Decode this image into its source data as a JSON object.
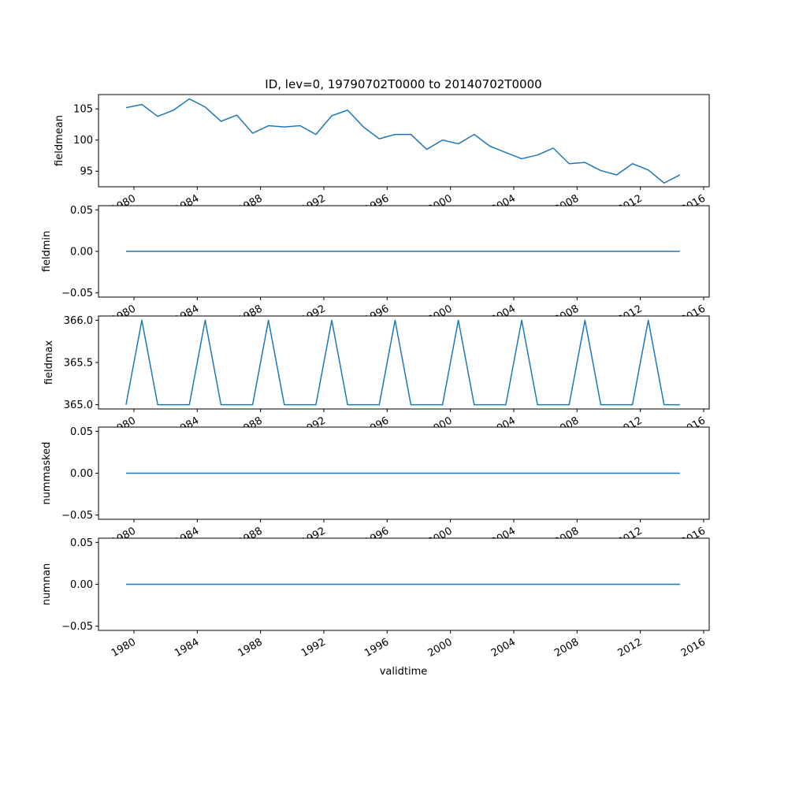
{
  "chart_data": {
    "type": "line",
    "title": "ID, lev=0, 19790702T0000 to 20140702T0000",
    "xlabel": "validtime",
    "x": [
      1979,
      1980,
      1981,
      1982,
      1983,
      1984,
      1985,
      1986,
      1987,
      1988,
      1989,
      1990,
      1991,
      1992,
      1993,
      1994,
      1995,
      1996,
      1997,
      1998,
      1999,
      2000,
      2001,
      2002,
      2003,
      2004,
      2005,
      2006,
      2007,
      2008,
      2009,
      2010,
      2011,
      2012,
      2013,
      2014
    ],
    "x_ticks": [
      "1980",
      "1984",
      "1988",
      "1992",
      "1996",
      "2000",
      "2004",
      "2008",
      "2012",
      "2016"
    ],
    "color": "#1f77b4",
    "panels": [
      {
        "ylabel": "fieldmean",
        "ylim": [
          92.5,
          107.3
        ],
        "yticks": [
          95,
          100,
          105
        ],
        "ytick_labels": [
          "95",
          "100",
          "105"
        ],
        "values": [
          105.2,
          105.7,
          103.8,
          104.8,
          106.6,
          105.3,
          103.0,
          104.0,
          101.1,
          102.3,
          102.1,
          102.3,
          100.9,
          103.9,
          104.8,
          102.1,
          100.2,
          100.9,
          100.9,
          98.5,
          100.0,
          99.4,
          100.9,
          99.0,
          98.0,
          97.0,
          97.6,
          98.7,
          96.2,
          96.4,
          95.1,
          94.4,
          96.2,
          95.2,
          93.1,
          94.4
        ]
      },
      {
        "ylabel": "fieldmin",
        "ylim": [
          -0.055,
          0.055
        ],
        "yticks": [
          -0.05,
          0,
          0.05
        ],
        "ytick_labels": [
          "−0.05",
          "0.00",
          "0.05"
        ],
        "values": [
          0,
          0,
          0,
          0,
          0,
          0,
          0,
          0,
          0,
          0,
          0,
          0,
          0,
          0,
          0,
          0,
          0,
          0,
          0,
          0,
          0,
          0,
          0,
          0,
          0,
          0,
          0,
          0,
          0,
          0,
          0,
          0,
          0,
          0,
          0,
          0
        ]
      },
      {
        "ylabel": "fieldmax",
        "ylim": [
          364.95,
          366.05
        ],
        "yticks": [
          365,
          365.5,
          366
        ],
        "ytick_labels": [
          "365.0",
          "365.5",
          "366.0"
        ],
        "values": [
          365,
          366,
          365,
          365,
          365,
          366,
          365,
          365,
          365,
          366,
          365,
          365,
          365,
          366,
          365,
          365,
          365,
          366,
          365,
          365,
          365,
          366,
          365,
          365,
          365,
          366,
          365,
          365,
          365,
          366,
          365,
          365,
          365,
          366,
          365,
          365
        ]
      },
      {
        "ylabel": "nummasked",
        "ylim": [
          -0.055,
          0.055
        ],
        "yticks": [
          -0.05,
          0,
          0.05
        ],
        "ytick_labels": [
          "−0.05",
          "0.00",
          "0.05"
        ],
        "values": [
          0,
          0,
          0,
          0,
          0,
          0,
          0,
          0,
          0,
          0,
          0,
          0,
          0,
          0,
          0,
          0,
          0,
          0,
          0,
          0,
          0,
          0,
          0,
          0,
          0,
          0,
          0,
          0,
          0,
          0,
          0,
          0,
          0,
          0,
          0,
          0
        ]
      },
      {
        "ylabel": "numnan",
        "ylim": [
          -0.055,
          0.055
        ],
        "yticks": [
          -0.05,
          0,
          0.05
        ],
        "ytick_labels": [
          "−0.05",
          "0.00",
          "0.05"
        ],
        "values": [
          0,
          0,
          0,
          0,
          0,
          0,
          0,
          0,
          0,
          0,
          0,
          0,
          0,
          0,
          0,
          0,
          0,
          0,
          0,
          0,
          0,
          0,
          0,
          0,
          0,
          0,
          0,
          0,
          0,
          0,
          0,
          0,
          0,
          0,
          0,
          0
        ]
      }
    ],
    "grid": false,
    "legend": "none"
  }
}
